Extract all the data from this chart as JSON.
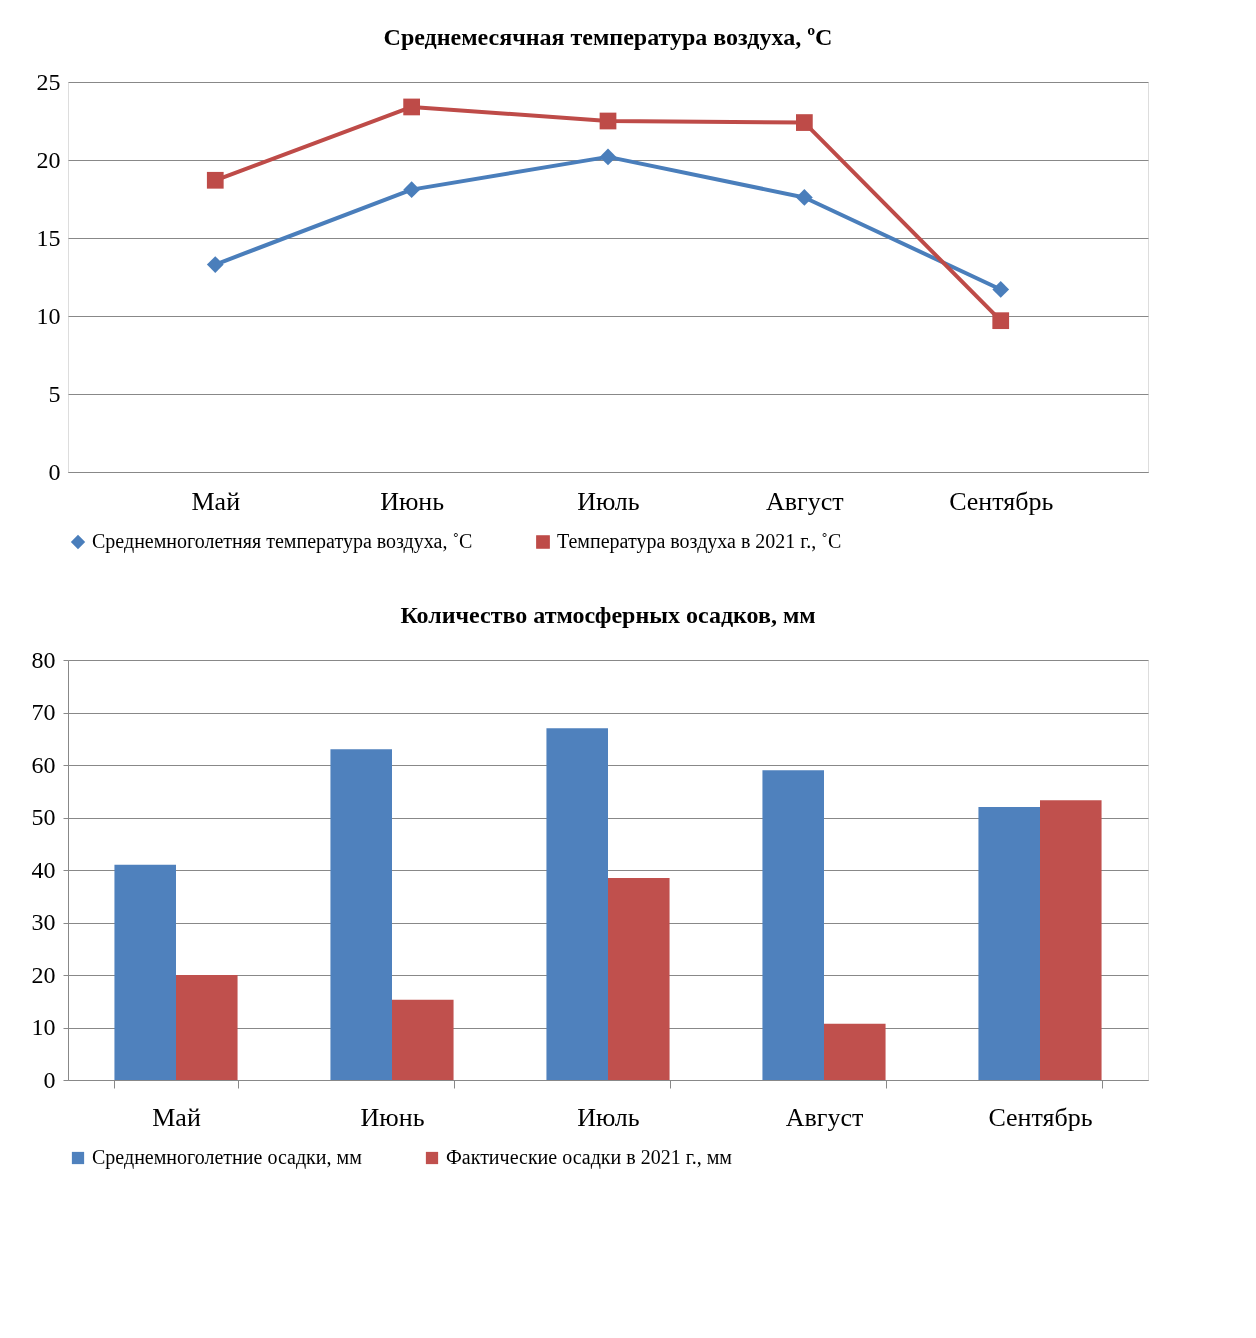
{
  "chart_data": [
    {
      "type": "line",
      "title": "Среднемесячная температура  воздуха, ºС",
      "categories": [
        "Май",
        "Июнь",
        "Июль",
        "Август",
        "Сентябрь"
      ],
      "series": [
        {
          "name": "Среднемноголетняя температура воздуха, ˚С",
          "color": "#4a7ebb",
          "marker": "diamond",
          "values": [
            13.3,
            18.1,
            20.2,
            17.6,
            11.7
          ]
        },
        {
          "name": "Температура воздуха в 2021 г., ˚С",
          "color": "#be4b48",
          "marker": "square",
          "values": [
            18.7,
            23.4,
            22.5,
            22.4,
            9.7
          ]
        }
      ],
      "ylim": [
        0,
        25
      ],
      "yticks": [
        0,
        5,
        10,
        15,
        20,
        25
      ],
      "grid": "y",
      "legend": "bottom",
      "line_style": "solid"
    },
    {
      "type": "bar",
      "title": "Количество атмосферных осадков, мм",
      "categories": [
        "Май",
        "Июнь",
        "Июль",
        "Август",
        "Сентябрь"
      ],
      "series": [
        {
          "name": "Среднемноголетние осадки, мм",
          "color": "#4f81bd",
          "values": [
            41,
            63,
            67,
            59,
            52
          ]
        },
        {
          "name": "Фактические осадки в 2021 г., мм",
          "color": "#c0504d",
          "values": [
            20,
            15.3,
            38.5,
            10.7,
            53.3
          ]
        }
      ],
      "ylim": [
        0,
        80
      ],
      "yticks": [
        0,
        10,
        20,
        30,
        40,
        50,
        60,
        70,
        80
      ],
      "grid": "y",
      "legend": "bottom"
    }
  ]
}
